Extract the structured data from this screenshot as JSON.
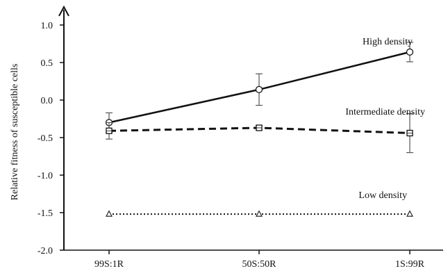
{
  "chart_data": {
    "type": "line",
    "title": "",
    "xlabel": "",
    "ylabel": "Relative fitness of susceptible cells",
    "categories": [
      "99S:1R",
      "50S:50R",
      "1S:99R"
    ],
    "ylim": [
      -2.0,
      1.0
    ],
    "yticks": [
      1.0,
      0.5,
      0.0,
      -0.5,
      -1.0,
      -1.5,
      -2.0
    ],
    "ytick_labels": [
      "1.0",
      "0.5",
      "0.0",
      "-0.5",
      "-1.0",
      "-1.5",
      "-2.0"
    ],
    "grid": false,
    "legend": "none",
    "series": [
      {
        "name": "High density",
        "values": [
          -0.3,
          0.14,
          0.64
        ],
        "errors": [
          0.13,
          0.21,
          0.13
        ],
        "marker": "circle",
        "line_style": "solid",
        "color": "#111111"
      },
      {
        "name": "Intermediate density",
        "values": [
          -0.41,
          -0.37,
          -0.44
        ],
        "errors": [
          0.11,
          0.03,
          0.26
        ],
        "marker": "square",
        "line_style": "dashed",
        "color": "#111111"
      },
      {
        "name": "Low density",
        "values": [
          -1.52,
          -1.52,
          -1.52
        ],
        "errors": [
          0,
          0,
          0
        ],
        "marker": "triangle",
        "line_style": "dotted",
        "color": "#111111"
      }
    ]
  }
}
